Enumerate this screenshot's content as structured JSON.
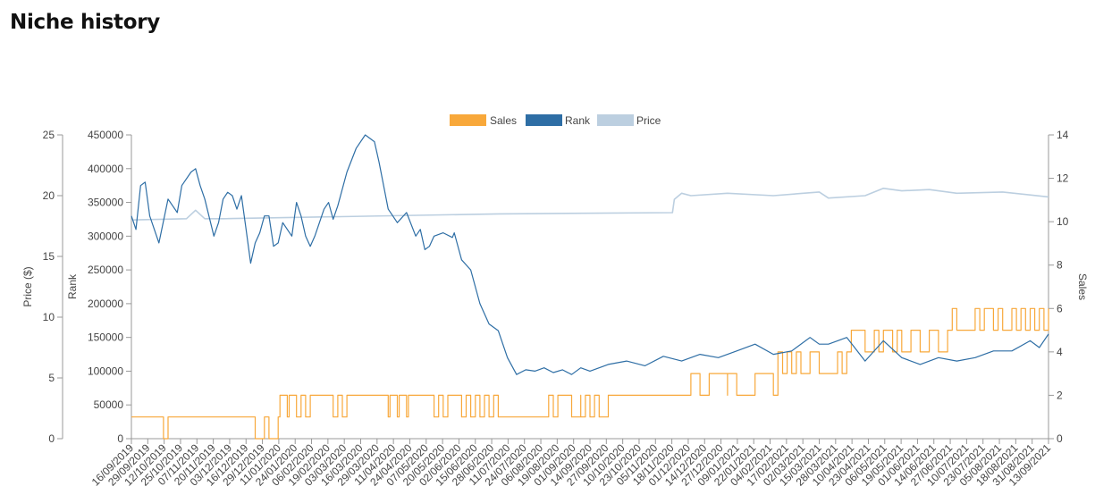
{
  "page": {
    "title": "Niche history"
  },
  "chart_data": {
    "type": "line",
    "title": "Niche history",
    "legend": [
      "Sales",
      "Rank",
      "Price"
    ],
    "legend_position": "top-center",
    "colors": {
      "Sales": "#f8a83a",
      "Rank": "#2e6ea5",
      "Price": "#bccfe0",
      "axis": "#999999",
      "text": "#444444"
    },
    "axes": {
      "price": {
        "label": "Price ($)",
        "ylim": [
          0,
          25
        ],
        "ticks": [
          0,
          5,
          10,
          15,
          20,
          25
        ]
      },
      "rank": {
        "label": "Rank",
        "ylim": [
          0,
          450000
        ],
        "ticks": [
          0,
          50000,
          100000,
          150000,
          200000,
          250000,
          300000,
          350000,
          400000,
          450000
        ]
      },
      "sales": {
        "label": "Sales",
        "ylim": [
          0,
          14
        ],
        "ticks": [
          0,
          2,
          4,
          6,
          8,
          10,
          12,
          14
        ]
      }
    },
    "x_labels": [
      "16/09/2019",
      "29/09/2019",
      "12/10/2019",
      "25/10/2019",
      "07/11/2019",
      "20/11/2019",
      "03/12/2019",
      "16/12/2019",
      "29/12/2019",
      "11/01/2020",
      "24/01/2020",
      "06/02/2020",
      "19/02/2020",
      "03/03/2020",
      "16/03/2020",
      "29/03/2020",
      "11/04/2020",
      "24/04/2020",
      "07/05/2020",
      "20/05/2020",
      "02/06/2020",
      "15/06/2020",
      "28/06/2020",
      "11/07/2020",
      "24/07/2020",
      "06/08/2020",
      "19/08/2020",
      "01/09/2020",
      "14/09/2020",
      "27/09/2020",
      "10/10/2020",
      "23/10/2020",
      "05/11/2020",
      "18/11/2020",
      "01/12/2020",
      "14/12/2020",
      "27/12/2020",
      "09/01/2021",
      "22/01/2021",
      "04/02/2021",
      "17/02/2021",
      "02/03/2021",
      "15/03/2021",
      "28/03/2021",
      "10/04/2021",
      "23/04/2021",
      "06/05/2021",
      "19/05/2021",
      "01/06/2021",
      "14/06/2021",
      "27/06/2021",
      "10/07/2021",
      "23/07/2021",
      "05/08/2021",
      "18/08/2021",
      "31/08/2021",
      "13/09/2021"
    ],
    "series": [
      {
        "name": "Price",
        "axis": "price",
        "x": [
          0,
          0.06,
          0.07,
          0.08,
          0.1,
          0.4,
          0.59,
          0.592,
          0.6,
          0.61,
          0.65,
          0.7,
          0.75,
          0.76,
          0.8,
          0.82,
          0.84,
          0.87,
          0.9,
          0.95,
          1.0
        ],
        "values": [
          18.0,
          18.1,
          18.8,
          18.1,
          18.1,
          18.5,
          18.6,
          19.7,
          20.2,
          20.0,
          20.2,
          20.0,
          20.3,
          19.8,
          20.0,
          20.6,
          20.4,
          20.5,
          20.2,
          20.3,
          19.9
        ]
      },
      {
        "name": "Rank",
        "axis": "rank",
        "x": [
          0,
          0.005,
          0.01,
          0.015,
          0.02,
          0.03,
          0.03,
          0.04,
          0.05,
          0.055,
          0.065,
          0.07,
          0.075,
          0.08,
          0.09,
          0.095,
          0.1,
          0.105,
          0.11,
          0.115,
          0.12,
          0.125,
          0.13,
          0.135,
          0.14,
          0.145,
          0.15,
          0.155,
          0.16,
          0.165,
          0.175,
          0.18,
          0.185,
          0.19,
          0.195,
          0.2,
          0.21,
          0.215,
          0.22,
          0.225,
          0.235,
          0.245,
          0.255,
          0.265,
          0.27,
          0.28,
          0.29,
          0.3,
          0.31,
          0.315,
          0.32,
          0.325,
          0.33,
          0.34,
          0.35,
          0.352,
          0.36,
          0.37,
          0.38,
          0.39,
          0.4,
          0.41,
          0.42,
          0.43,
          0.44,
          0.45,
          0.46,
          0.47,
          0.48,
          0.49,
          0.5,
          0.52,
          0.54,
          0.56,
          0.58,
          0.6,
          0.62,
          0.64,
          0.66,
          0.68,
          0.7,
          0.72,
          0.74,
          0.75,
          0.76,
          0.78,
          0.8,
          0.82,
          0.84,
          0.86,
          0.88,
          0.9,
          0.92,
          0.94,
          0.96,
          0.98,
          0.99,
          1.0
        ],
        "values": [
          330000,
          310000,
          375000,
          380000,
          330000,
          290000,
          290000,
          355000,
          335000,
          375000,
          395000,
          400000,
          375000,
          355000,
          300000,
          320000,
          355000,
          365000,
          360000,
          340000,
          360000,
          310000,
          260000,
          290000,
          305000,
          330000,
          330000,
          285000,
          290000,
          320000,
          300000,
          350000,
          330000,
          300000,
          285000,
          300000,
          340000,
          350000,
          325000,
          345000,
          395000,
          430000,
          450000,
          440000,
          410000,
          340000,
          320000,
          335000,
          300000,
          310000,
          280000,
          285000,
          300000,
          305000,
          298000,
          305000,
          265000,
          250000,
          200000,
          170000,
          160000,
          120000,
          95000,
          102000,
          100000,
          105000,
          98000,
          102000,
          95000,
          105000,
          100000,
          110000,
          115000,
          108000,
          122000,
          115000,
          125000,
          120000,
          130000,
          140000,
          125000,
          130000,
          150000,
          140000,
          140000,
          150000,
          115000,
          145000,
          120000,
          110000,
          120000,
          115000,
          120000,
          130000,
          130000,
          145000,
          135000,
          155000
        ]
      },
      {
        "name": "Sales",
        "axis": "sales",
        "x": [
          0,
          0.03,
          0.035,
          0.04,
          0.045,
          0.13,
          0.135,
          0.145,
          0.15,
          0.16,
          0.162,
          0.17,
          0.172,
          0.18,
          0.185,
          0.19,
          0.195,
          0.22,
          0.225,
          0.23,
          0.235,
          0.28,
          0.282,
          0.29,
          0.292,
          0.3,
          0.302,
          0.33,
          0.335,
          0.34,
          0.345,
          0.36,
          0.365,
          0.37,
          0.375,
          0.38,
          0.385,
          0.39,
          0.395,
          0.4,
          0.42,
          0.45,
          0.455,
          0.46,
          0.465,
          0.48,
          0.49,
          0.49,
          0.495,
          0.5,
          0.505,
          0.51,
          0.52,
          0.6,
          0.6,
          0.61,
          0.62,
          0.63,
          0.65,
          0.65,
          0.66,
          0.68,
          0.7,
          0.705,
          0.71,
          0.715,
          0.72,
          0.725,
          0.73,
          0.74,
          0.75,
          0.77,
          0.775,
          0.78,
          0.785,
          0.8,
          0.81,
          0.815,
          0.82,
          0.83,
          0.835,
          0.84,
          0.85,
          0.86,
          0.87,
          0.88,
          0.89,
          0.895,
          0.9,
          0.92,
          0.925,
          0.93,
          0.94,
          0.945,
          0.95,
          0.96,
          0.965,
          0.97,
          0.975,
          0.98,
          0.985,
          0.99,
          0.995,
          1.0
        ],
        "values": [
          1,
          1,
          0,
          1,
          1,
          1,
          0,
          1,
          0,
          1,
          2,
          1,
          2,
          1,
          2,
          1,
          2,
          1,
          2,
          1,
          2,
          1,
          2,
          1,
          2,
          1,
          2,
          1,
          2,
          1,
          2,
          1,
          2,
          1,
          2,
          1,
          2,
          1,
          2,
          1,
          1,
          1,
          2,
          1,
          2,
          1,
          2,
          1,
          2,
          1,
          2,
          1,
          2,
          2,
          2,
          3,
          2,
          3,
          2,
          3,
          2,
          3,
          2,
          4,
          3,
          4,
          3,
          4,
          3,
          4,
          3,
          4,
          3,
          4,
          5,
          4,
          5,
          4,
          5,
          4,
          5,
          4,
          5,
          4,
          5,
          4,
          5,
          6,
          5,
          6,
          5,
          6,
          5,
          6,
          5,
          6,
          5,
          6,
          5,
          6,
          5,
          6,
          5,
          6
        ]
      }
    ]
  }
}
